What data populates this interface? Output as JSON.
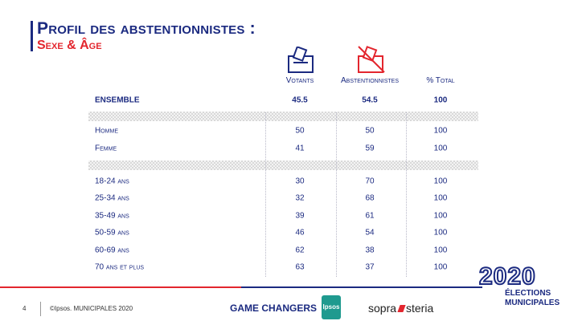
{
  "header": {
    "title": "Profil des abstentionnistes :",
    "subtitle": "Sexe & Âge"
  },
  "table": {
    "columns": [
      "Votants",
      "Abstentionnistes",
      "% Total"
    ],
    "total": {
      "label": "ENSEMBLE",
      "values": [
        45.5,
        54.5,
        100
      ]
    },
    "groups": [
      [
        {
          "label": "Homme",
          "values": [
            50,
            50,
            100
          ]
        },
        {
          "label": "Femme",
          "values": [
            41,
            59,
            100
          ]
        }
      ],
      [
        {
          "label": "18-24 ans",
          "values": [
            30,
            70,
            100
          ]
        },
        {
          "label": "25-34 ans",
          "values": [
            32,
            68,
            100
          ]
        },
        {
          "label": "35-49 ans",
          "values": [
            39,
            61,
            100
          ]
        },
        {
          "label": "50-59 ans",
          "values": [
            46,
            54,
            100
          ]
        },
        {
          "label": "60-69 ans",
          "values": [
            62,
            38,
            100
          ]
        },
        {
          "label": "70 ans et plus",
          "values": [
            63,
            37,
            100
          ]
        }
      ]
    ]
  },
  "footer": {
    "page": "4",
    "copyright": "©Ipsos.  MUNICIPALES 2020",
    "tagline": "GAME CHANGERS",
    "ipsos": "Ipsos",
    "sopra": "sopra",
    "steria": "steria",
    "year": "2020",
    "elections": "ÉLECTIONS",
    "municipales": "MUNICIPALES"
  }
}
